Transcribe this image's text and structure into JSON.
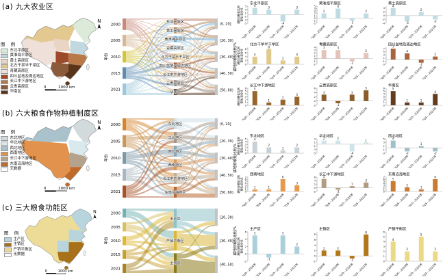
{
  "chart_common": {
    "x_labels": [
      "2000—2005年",
      "2005—2010年",
      "2010—2015年",
      "2015—2021年"
    ],
    "y_label_line1": "耕地非粮化比例",
    "y_label_line2": "变化/百分点"
  },
  "rows": [
    {
      "id": "a",
      "title": "(a) 九大农业区",
      "legend_title": "图 例",
      "legend": [
        {
          "label": "东北平原区",
          "color": "#dcead9"
        },
        {
          "label": "黄淮海平原区",
          "color": "#c2d8e0"
        },
        {
          "label": "黄土高原区",
          "color": "#ead4c4"
        },
        {
          "label": "北方干旱半干旱区",
          "color": "#e3c88f"
        },
        {
          "label": "青藏高原区",
          "color": "#efe0da"
        },
        {
          "label": "四川盆地及周边地区",
          "color": "#9c4a2a"
        },
        {
          "label": "长江中下游地区",
          "color": "#b87848"
        },
        {
          "label": "云贵高原区",
          "color": "#8a5a3a"
        },
        {
          "label": "华南区",
          "color": "#5a3418"
        }
      ],
      "north_label": "N",
      "map_scale": {
        "zero": "0",
        "dist": "1000 km"
      },
      "sankey": {
        "year_axis_label": "年份",
        "value_axis_label": "耕地非粮化比例/%",
        "years": [
          {
            "label": "2000",
            "color": "#c8897a"
          },
          {
            "label": "2005",
            "color": "#d6b896"
          },
          {
            "label": "2010",
            "color": "#d4c43c"
          },
          {
            "label": "2015",
            "color": "#5f8cb2"
          },
          {
            "label": "2021",
            "color": "#9cc8da"
          }
        ],
        "nodes": [
          {
            "label": "东北平原区",
            "color": "#bf8870"
          },
          {
            "label": "黄土高原区",
            "color": "#b08a5a"
          },
          {
            "label": "黄淮海平原区",
            "color": "#6fb0d8"
          },
          {
            "label": "青藏高原区",
            "color": "#cfe4ea"
          },
          {
            "label": "北方干旱半干旱区",
            "color": "#d8b86e"
          },
          {
            "label": "四川盆地及周边地区",
            "color": "#a65a2a"
          },
          {
            "label": "长江中下游地区",
            "color": "#e4cabc"
          },
          {
            "label": "云贵高原区",
            "color": "#9a8878"
          },
          {
            "label": "华南区",
            "color": "#5e3a20"
          }
        ],
        "ranges": [
          "(0, 20]",
          "[20, 30)",
          "[30, 40)",
          "[40, 50)",
          "[50, 60)"
        ]
      },
      "charts": [
        {
          "title": "东北平原区",
          "color": "#bfdce2",
          "values": [
            4,
            3,
            -4,
            3
          ]
        },
        {
          "title": "黄淮海平原区",
          "color": "#bfdce2",
          "values": [
            2,
            4,
            -1,
            2
          ]
        },
        {
          "title": "黄土高原区",
          "color": "#bfdce2",
          "values": [
            4,
            -3,
            2,
            -2
          ]
        },
        {
          "title": "北方干旱半干旱区",
          "color": "#e0c98c",
          "values": [
            4,
            8,
            2,
            4
          ]
        },
        {
          "title": "青藏高原区",
          "color": "#e4c4ba",
          "values": [
            3,
            3,
            -1,
            2
          ]
        },
        {
          "title": "四川盆地及周边地区",
          "color": "#a8643c",
          "values": [
            7,
            4,
            -2,
            2
          ]
        },
        {
          "title": "长江中下游地区",
          "color": "#96662e",
          "values": [
            5,
            1,
            2,
            3
          ]
        },
        {
          "title": "云贵高原区",
          "color": "#8a5c28",
          "values": [
            3,
            -1,
            3,
            5
          ]
        },
        {
          "title": "华南区",
          "color": "#643c1e",
          "values": [
            5,
            1,
            1,
            4
          ]
        }
      ]
    },
    {
      "id": "b",
      "title": "(b) 六大粮食作物种植制度区",
      "legend_title": "图 例",
      "legend": [
        {
          "label": "东北地区",
          "color": "#d2dadb"
        },
        {
          "label": "华北地区",
          "color": "#d9e9ee"
        },
        {
          "label": "西北地区",
          "color": "#a9c2cb"
        },
        {
          "label": "西南地区",
          "color": "#e2924c"
        },
        {
          "label": "长江中下游地区",
          "color": "#b4a28c"
        },
        {
          "label": "东南沿海地区",
          "color": "#bf6a28"
        },
        {
          "label": "无数据",
          "color": "#ffffff"
        }
      ],
      "north_label": "N",
      "map_scale": {
        "zero": "0",
        "dist": "1000 km"
      },
      "sankey": {
        "year_axis_label": "年份",
        "value_axis_label": "耕地非粮化比例/%",
        "years": [
          {
            "label": "2000",
            "color": "#d8842e"
          },
          {
            "label": "2005",
            "color": "#c89858"
          },
          {
            "label": "2010",
            "color": "#7e98a8"
          },
          {
            "label": "2015",
            "color": "#a9b8c0"
          },
          {
            "label": "2021",
            "color": "#a85228"
          }
        ],
        "nodes": [
          {
            "label": "东北地区",
            "color": "#cfe0e8"
          },
          {
            "label": "华北地区",
            "color": "#a89888"
          },
          {
            "label": "西北地区",
            "color": "#8aa8b8"
          },
          {
            "label": "西南地区",
            "color": "#d89858"
          },
          {
            "label": "长江中下游地区",
            "color": "#c0b098"
          },
          {
            "label": "东南沿海地区",
            "color": "#b86830"
          }
        ],
        "ranges": [
          "(0, 20]",
          "[20, 30)",
          "[30, 40)",
          "[40, 50)",
          "[50, 60)"
        ]
      },
      "charts": [
        {
          "title": "东北地区",
          "color": "#c6d2d6",
          "values": [
            4,
            2,
            1,
            2
          ]
        },
        {
          "title": "华北地区",
          "color": "#cfe4ea",
          "values": [
            2,
            2,
            -4,
            1
          ]
        },
        {
          "title": "西北地区",
          "color": "#9fbfc9",
          "values": [
            4,
            -2,
            1,
            -2
          ]
        },
        {
          "title": "西南地区",
          "color": "#e69a4e",
          "values": [
            1,
            1,
            6,
            3
          ]
        },
        {
          "title": "长江中下游地区",
          "color": "#b49c82",
          "values": [
            5,
            -1,
            1,
            3
          ]
        },
        {
          "title": "东南沿海地区",
          "color": "#cc7a30",
          "values": [
            5,
            2,
            1,
            6
          ]
        }
      ]
    },
    {
      "id": "c",
      "title": "(c) 三大粮食功能区",
      "legend_title": "图 例",
      "legend": [
        {
          "label": "主产区",
          "color": "#b8d4dc"
        },
        {
          "label": "主销区",
          "color": "#a87018"
        },
        {
          "label": "产销平衡区",
          "color": "#ecdc98"
        },
        {
          "label": "无数据",
          "color": "#ffffff"
        }
      ],
      "north_label": "N",
      "map_scale": {
        "zero": "0",
        "dist": "1000 km"
      },
      "sankey": {
        "year_axis_label": "年份",
        "value_axis_label": "耕地非粮化比例/%",
        "years": [
          {
            "label": "2000",
            "color": "#74b2b2"
          },
          {
            "label": "2005",
            "color": "#d8c060"
          },
          {
            "label": "2010",
            "color": "#dfb832"
          },
          {
            "label": "2015",
            "color": "#c8a030"
          },
          {
            "label": "2021",
            "color": "#a88420"
          }
        ],
        "nodes": [
          {
            "label": "主产区",
            "color": "#8fc3c9"
          },
          {
            "label": "产销平衡区",
            "color": "#d9b83c"
          },
          {
            "label": "主销区",
            "color": "#8a7a1a"
          }
        ],
        "ranges": [
          "[20, 30)",
          "[30, 40)",
          "[40, 50)"
        ]
      },
      "charts": [
        {
          "title": "主产区",
          "color": "#abd0da",
          "values": [
            5,
            -1,
            5,
            2
          ]
        },
        {
          "title": "主销区",
          "color": "#b07818",
          "values": [
            2,
            2,
            -1,
            8
          ]
        },
        {
          "title": "产销平衡区",
          "color": "#ead985",
          "values": [
            4,
            2,
            5,
            2
          ]
        }
      ]
    }
  ],
  "chart_data": [
    {
      "type": "sankey",
      "panel": "a",
      "title": "九大农业区 年份→耕地非粮化比例分级",
      "left_nodes": [
        "2000",
        "2005",
        "2010",
        "2015",
        "2021"
      ],
      "mid_nodes": [
        "东北平原区",
        "黄土高原区",
        "黄淮海平原区",
        "青藏高原区",
        "北方干旱半干旱区",
        "四川盆地及周边地区",
        "长江中下游地区",
        "云贵高原区",
        "华南区"
      ],
      "right_nodes": [
        "(0, 20]",
        "[20, 30)",
        "[30, 40)",
        "[40, 50)",
        "[50, 60)"
      ]
    },
    {
      "type": "sankey",
      "panel": "b",
      "title": "六大粮食作物种植制度区 年份→耕地非粮化比例分级",
      "left_nodes": [
        "2000",
        "2005",
        "2010",
        "2015",
        "2021"
      ],
      "mid_nodes": [
        "东北地区",
        "华北地区",
        "西北地区",
        "西南地区",
        "长江中下游地区",
        "东南沿海地区"
      ],
      "right_nodes": [
        "(0, 20]",
        "[20, 30)",
        "[30, 40)",
        "[40, 50)",
        "[50, 60)"
      ]
    },
    {
      "type": "sankey",
      "panel": "c",
      "title": "三大粮食功能区 年份→耕地非粮化比例分级",
      "left_nodes": [
        "2000",
        "2005",
        "2010",
        "2015",
        "2021"
      ],
      "mid_nodes": [
        "主产区",
        "产销平衡区",
        "主销区"
      ],
      "right_nodes": [
        "[20, 30)",
        "[30, 40)",
        "[40, 50)"
      ]
    },
    {
      "type": "bar",
      "panel": "a",
      "categories": [
        "2000—2005年",
        "2005—2010年",
        "2010—2015年",
        "2015—2021年"
      ],
      "ylabel": "耕地非粮化比例变化/百分点",
      "series": [
        {
          "name": "东北平原区",
          "values": [
            4,
            3,
            -4,
            3
          ]
        },
        {
          "name": "黄淮海平原区",
          "values": [
            2,
            4,
            -1,
            2
          ]
        },
        {
          "name": "黄土高原区",
          "values": [
            4,
            -3,
            2,
            -2
          ]
        },
        {
          "name": "北方干旱半干旱区",
          "values": [
            4,
            8,
            2,
            4
          ]
        },
        {
          "name": "青藏高原区",
          "values": [
            3,
            3,
            -1,
            2
          ]
        },
        {
          "name": "四川盆地及周边地区",
          "values": [
            7,
            4,
            -2,
            2
          ]
        },
        {
          "name": "长江中下游地区",
          "values": [
            5,
            1,
            2,
            3
          ]
        },
        {
          "name": "云贵高原区",
          "values": [
            3,
            -1,
            3,
            5
          ]
        },
        {
          "name": "华南区",
          "values": [
            5,
            1,
            1,
            4
          ]
        }
      ]
    },
    {
      "type": "bar",
      "panel": "b",
      "categories": [
        "2000—2005年",
        "2005—2010年",
        "2010—2015年",
        "2015—2021年"
      ],
      "ylabel": "耕地非粮化比例变化/百分点",
      "series": [
        {
          "name": "东北地区",
          "values": [
            4,
            2,
            1,
            2
          ]
        },
        {
          "name": "华北地区",
          "values": [
            2,
            2,
            -4,
            1
          ]
        },
        {
          "name": "西北地区",
          "values": [
            4,
            -2,
            1,
            -2
          ]
        },
        {
          "name": "西南地区",
          "values": [
            1,
            1,
            6,
            3
          ]
        },
        {
          "name": "长江中下游地区",
          "values": [
            5,
            -1,
            1,
            3
          ]
        },
        {
          "name": "东南沿海地区",
          "values": [
            5,
            2,
            1,
            6
          ]
        }
      ]
    },
    {
      "type": "bar",
      "panel": "c",
      "categories": [
        "2000—2005年",
        "2005—2010年",
        "2010—2015年",
        "2015—2021年"
      ],
      "ylabel": "耕地非粮化比例变化/百分点",
      "series": [
        {
          "name": "主产区",
          "values": [
            5,
            -1,
            5,
            2
          ]
        },
        {
          "name": "主销区",
          "values": [
            2,
            2,
            -1,
            8
          ]
        },
        {
          "name": "产销平衡区",
          "values": [
            4,
            2,
            5,
            2
          ]
        }
      ]
    }
  ]
}
